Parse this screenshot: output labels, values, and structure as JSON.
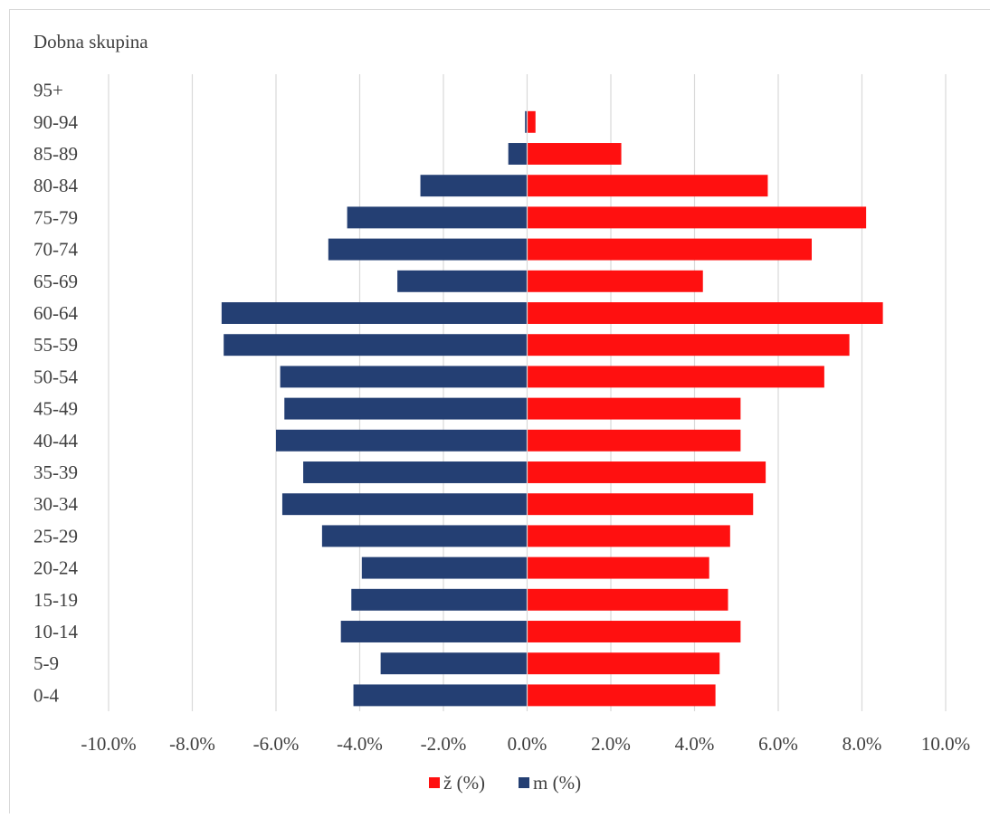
{
  "chart_data": {
    "type": "bar",
    "orientation": "horizontal",
    "subtype": "population-pyramid",
    "ylabel": "Dobna skupina",
    "categories": [
      "0-4",
      "5-9",
      "10-14",
      "15-19",
      "20-24",
      "25-29",
      "30-34",
      "35-39",
      "40-44",
      "45-49",
      "50-54",
      "55-59",
      "60-64",
      "65-69",
      "70-74",
      "75-79",
      "80-84",
      "85-89",
      "90-94",
      "95+"
    ],
    "series": [
      {
        "name": "ž (%)",
        "color": "#ff1010",
        "values": [
          4.5,
          4.6,
          5.1,
          4.8,
          4.35,
          4.85,
          5.4,
          5.7,
          5.1,
          5.1,
          7.1,
          7.7,
          8.5,
          4.2,
          6.8,
          8.1,
          5.75,
          2.25,
          0.2,
          0.0
        ]
      },
      {
        "name": "m (%)",
        "color": "#243f73",
        "values": [
          -4.15,
          -3.5,
          -4.45,
          -4.2,
          -3.95,
          -4.9,
          -5.85,
          -5.35,
          -6.0,
          -5.8,
          -5.9,
          -7.25,
          -7.3,
          -3.1,
          -4.75,
          -4.3,
          -2.55,
          -0.45,
          -0.05,
          0.0
        ]
      }
    ],
    "xlim": [
      -10,
      10
    ],
    "xticks": [
      "-10.0%",
      "-8.0%",
      "-6.0%",
      "-4.0%",
      "-2.0%",
      "0.0%",
      "2.0%",
      "4.0%",
      "6.0%",
      "8.0%",
      "10.0%"
    ],
    "grid": true,
    "legend_position": "bottom",
    "legend": [
      {
        "label": "ž (%)",
        "color": "#ff1010"
      },
      {
        "label": "m (%)",
        "color": "#243f73"
      }
    ]
  }
}
